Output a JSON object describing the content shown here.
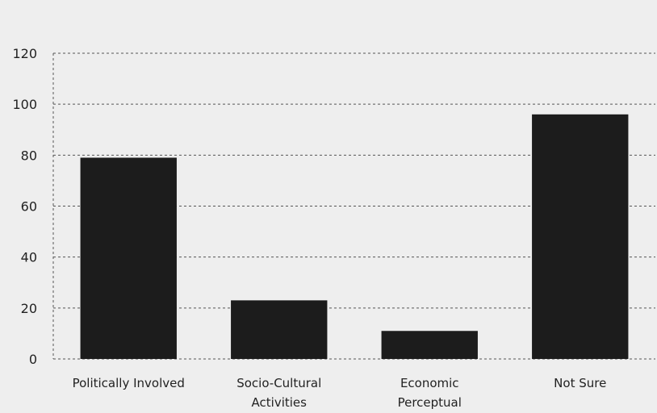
{
  "chart_data": {
    "type": "bar",
    "categories": [
      [
        "Politically Involved"
      ],
      [
        "Socio-Cultural",
        "Activities"
      ],
      [
        "Economic",
        "Perceptual"
      ],
      [
        "Not Sure"
      ]
    ],
    "values": [
      79,
      23,
      11,
      96
    ],
    "title": "",
    "xlabel": "",
    "ylabel": "",
    "ylim": [
      0,
      120
    ],
    "yticks": [
      0,
      20,
      40,
      60,
      80,
      100,
      120
    ],
    "grid": true,
    "legend": "none",
    "colors": {
      "bar": "#1c1c1c",
      "grid": "#555555",
      "background": "#eeeeee"
    }
  }
}
